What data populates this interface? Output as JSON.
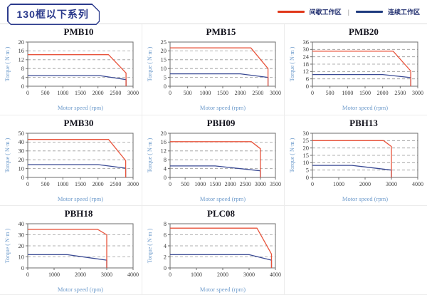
{
  "header": {
    "title": "130框以下系列",
    "legend": [
      {
        "label": "间歇工作区",
        "color": "#e0371a"
      },
      {
        "label": "连续工作区",
        "color": "#1e3a7e"
      }
    ],
    "legend_separator": "|"
  },
  "colors": {
    "brand_navy": "#2b3a8c",
    "chart_red": "#e8543c",
    "chart_blue": "#3a4a94",
    "axis_label_blue": "#6f9ccc",
    "tick_text": "#3a3a3a",
    "gridline": "#999999",
    "plot_border": "#6e6e6e",
    "cell_border": "#ececec"
  },
  "chart_data": [
    {
      "type": "line",
      "title": "PMB10",
      "xlabel": "Motor speed (rpm)",
      "ylabel": "Torque ( N·m )",
      "xlim": [
        0,
        3000
      ],
      "ylim": [
        0,
        20
      ],
      "xticks": [
        0,
        500,
        1000,
        1500,
        2000,
        2500,
        3000
      ],
      "yticks": [
        0,
        4,
        8,
        12,
        16,
        20
      ],
      "grid": "horizontal-dashed",
      "legend_position": "none",
      "series": [
        {
          "name": "间歇工作区",
          "color": "#e8543c",
          "points": [
            [
              0,
              14.3
            ],
            [
              2300,
              14.3
            ],
            [
              2800,
              6
            ],
            [
              2800,
              0
            ]
          ]
        },
        {
          "name": "连续工作区",
          "color": "#3a4a94",
          "points": [
            [
              0,
              4.8
            ],
            [
              2050,
              4.8
            ],
            [
              2800,
              3
            ],
            [
              2800,
              0
            ]
          ]
        }
      ]
    },
    {
      "type": "line",
      "title": "PMB15",
      "xlabel": "Motor speed (rpm)",
      "ylabel": "Torque ( N·m )",
      "xlim": [
        0,
        3000
      ],
      "ylim": [
        0,
        25
      ],
      "xticks": [
        0,
        500,
        1000,
        1500,
        2000,
        2500,
        3000
      ],
      "yticks": [
        0,
        5,
        10,
        15,
        20,
        25
      ],
      "grid": "horizontal-dashed",
      "legend_position": "none",
      "series": [
        {
          "name": "间歇工作区",
          "color": "#e8543c",
          "points": [
            [
              0,
              21.7
            ],
            [
              2300,
              21.7
            ],
            [
              2790,
              10
            ],
            [
              2790,
              0
            ]
          ]
        },
        {
          "name": "连续工作区",
          "color": "#3a4a94",
          "points": [
            [
              0,
              7
            ],
            [
              2000,
              7
            ],
            [
              2790,
              5
            ],
            [
              2790,
              0
            ]
          ]
        }
      ]
    },
    {
      "type": "line",
      "title": "PMB20",
      "xlabel": "Motor speed (rpm)",
      "ylabel": "Torque ( N·m )",
      "xlim": [
        0,
        3000
      ],
      "ylim": [
        0,
        36
      ],
      "xticks": [
        0,
        500,
        1000,
        1500,
        2000,
        2500,
        3000
      ],
      "yticks": [
        0,
        6,
        12,
        18,
        24,
        30,
        36
      ],
      "grid": "horizontal-dashed",
      "legend_position": "none",
      "series": [
        {
          "name": "间歇工作区",
          "color": "#e8543c",
          "points": [
            [
              0,
              28.5
            ],
            [
              2300,
              28.5
            ],
            [
              2800,
              12.5
            ],
            [
              2800,
              0
            ]
          ]
        },
        {
          "name": "连续工作区",
          "color": "#3a4a94",
          "points": [
            [
              0,
              9.5
            ],
            [
              2000,
              9.5
            ],
            [
              2800,
              7
            ],
            [
              2800,
              0
            ]
          ]
        }
      ]
    },
    {
      "type": "line",
      "title": "PMB30",
      "xlabel": "Motor speed (rpm)",
      "ylabel": "Torque ( N·m )",
      "xlim": [
        0,
        3000
      ],
      "ylim": [
        0,
        50
      ],
      "xticks": [
        0,
        500,
        1000,
        1500,
        2000,
        2500,
        3000
      ],
      "yticks": [
        0,
        10,
        20,
        30,
        40,
        50
      ],
      "grid": "horizontal-dashed",
      "legend_position": "none",
      "series": [
        {
          "name": "间歇工作区",
          "color": "#e8543c",
          "points": [
            [
              0,
              43
            ],
            [
              2300,
              43
            ],
            [
              2790,
              19
            ],
            [
              2790,
              0
            ]
          ]
        },
        {
          "name": "连续工作区",
          "color": "#3a4a94",
          "points": [
            [
              0,
              14.5
            ],
            [
              2000,
              14.5
            ],
            [
              2790,
              10.5
            ],
            [
              2790,
              0
            ]
          ]
        }
      ]
    },
    {
      "type": "line",
      "title": "PBH09",
      "xlabel": "Motor speed (rpm)",
      "ylabel": "Torque ( N·m )",
      "xlim": [
        0,
        3500
      ],
      "ylim": [
        0,
        20
      ],
      "xticks": [
        0,
        500,
        1000,
        1500,
        2000,
        2500,
        3000,
        3500
      ],
      "yticks": [
        0,
        4,
        8,
        12,
        16,
        20
      ],
      "grid": "horizontal-dashed",
      "legend_position": "none",
      "series": [
        {
          "name": "间歇工作区",
          "color": "#e8543c",
          "points": [
            [
              0,
              16.2
            ],
            [
              2700,
              16.2
            ],
            [
              3000,
              13
            ],
            [
              3000,
              0
            ]
          ]
        },
        {
          "name": "连续工作区",
          "color": "#3a4a94",
          "points": [
            [
              0,
              5.2
            ],
            [
              1500,
              5.2
            ],
            [
              3000,
              3
            ],
            [
              3000,
              0
            ]
          ]
        }
      ]
    },
    {
      "type": "line",
      "title": "PBH13",
      "xlabel": "Motor speed (rpm)",
      "ylabel": "Torque ( N·m )",
      "xlim": [
        0,
        4000
      ],
      "ylim": [
        0,
        30
      ],
      "xticks": [
        0,
        1000,
        2000,
        3000,
        4000
      ],
      "yticks": [
        0,
        5,
        10,
        15,
        20,
        25,
        30
      ],
      "grid": "horizontal-dashed",
      "legend_position": "none",
      "series": [
        {
          "name": "间歇工作区",
          "color": "#e8543c",
          "points": [
            [
              0,
              25
            ],
            [
              2700,
              25
            ],
            [
              3000,
              21
            ],
            [
              3000,
              0
            ]
          ]
        },
        {
          "name": "连续工作区",
          "color": "#3a4a94",
          "points": [
            [
              0,
              8.2
            ],
            [
              1500,
              8.2
            ],
            [
              3000,
              5
            ],
            [
              3000,
              0
            ]
          ]
        }
      ]
    },
    {
      "type": "line",
      "title": "PBH18",
      "xlabel": "Motor speed (rpm)",
      "ylabel": "Torque ( N·m )",
      "xlim": [
        0,
        4000
      ],
      "ylim": [
        0,
        40
      ],
      "xticks": [
        0,
        1000,
        2000,
        3000,
        4000
      ],
      "yticks": [
        0,
        10,
        20,
        30,
        40
      ],
      "grid": "horizontal-dashed",
      "legend_position": "none",
      "series": [
        {
          "name": "间歇工作区",
          "color": "#e8543c",
          "points": [
            [
              0,
              35
            ],
            [
              2650,
              35
            ],
            [
              3000,
              30
            ],
            [
              3000,
              0
            ]
          ]
        },
        {
          "name": "连续工作区",
          "color": "#3a4a94",
          "points": [
            [
              0,
              12
            ],
            [
              1500,
              12
            ],
            [
              3000,
              7
            ],
            [
              3000,
              0
            ]
          ]
        }
      ]
    },
    {
      "type": "line",
      "title": "PLC08",
      "xlabel": "Motor speed (rpm)",
      "ylabel": "Torque ( N·m )",
      "xlim": [
        0,
        4000
      ],
      "ylim": [
        0,
        8
      ],
      "xticks": [
        0,
        1000,
        2000,
        3000,
        4000
      ],
      "yticks": [
        0,
        2,
        4,
        6,
        8
      ],
      "grid": "horizontal-dashed",
      "legend_position": "none",
      "series": [
        {
          "name": "间歇工作区",
          "color": "#e8543c",
          "points": [
            [
              0,
              7.2
            ],
            [
              3300,
              7.2
            ],
            [
              3850,
              2.5
            ],
            [
              3850,
              0
            ]
          ]
        },
        {
          "name": "连续工作区",
          "color": "#3a4a94",
          "points": [
            [
              0,
              2.4
            ],
            [
              3000,
              2.4
            ],
            [
              3850,
              1.4
            ],
            [
              3850,
              0
            ]
          ]
        }
      ]
    }
  ]
}
